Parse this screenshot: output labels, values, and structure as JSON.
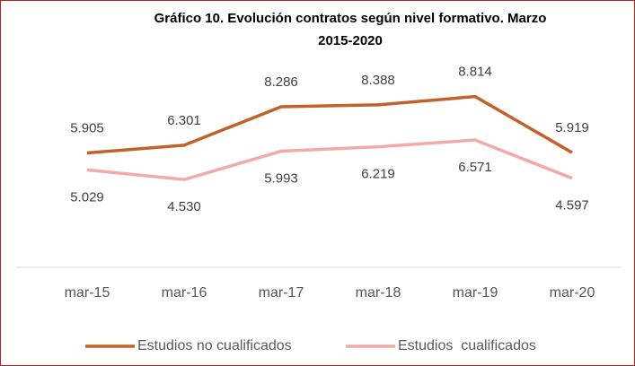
{
  "chart_data": {
    "type": "line",
    "title_lines": [
      "Gráfico 10. Evolución contratos según nivel formativo. Marzo",
      "2015-2020"
    ],
    "categories": [
      "mar-15",
      "mar-16",
      "mar-17",
      "mar-18",
      "mar-19",
      "mar-20"
    ],
    "ylim": [
      0,
      10000
    ],
    "legend": "bottom",
    "series": [
      {
        "name": "Estudios no cualificados",
        "color": "#c0622a",
        "values": [
          5905,
          6301,
          8286,
          8388,
          8814,
          5919
        ],
        "value_labels": [
          "5.905",
          "6.301",
          "8.286",
          "8.388",
          "8.814",
          "5.919"
        ]
      },
      {
        "name": "Estudios  cualificados",
        "color": "#f2a9a9",
        "values": [
          5029,
          4530,
          5993,
          6219,
          6571,
          4597
        ],
        "value_labels": [
          "5.029",
          "4.530",
          "5.993",
          "6.219",
          "6.571",
          "4.597"
        ]
      }
    ]
  }
}
